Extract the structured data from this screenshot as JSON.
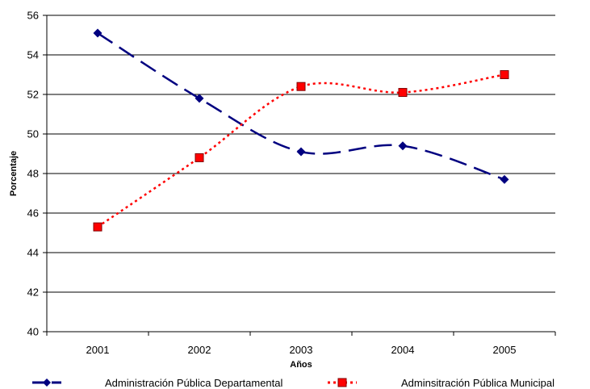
{
  "chart_data": {
    "type": "line",
    "categories": [
      "2001",
      "2002",
      "2003",
      "2004",
      "2005"
    ],
    "series": [
      {
        "name": "Administración Pública Departamental",
        "values": [
          55.1,
          51.8,
          49.1,
          49.4,
          47.7
        ],
        "color": "#000080",
        "marker": "diamond",
        "line_style": "long-dash"
      },
      {
        "name": "Adminsitración Pública Municipal",
        "values": [
          45.3,
          48.8,
          52.4,
          52.1,
          53.0
        ],
        "color": "#ff0000",
        "marker": "square",
        "line_style": "dotted"
      }
    ],
    "title": "",
    "xlabel": "Años",
    "ylabel": "Porcentaje",
    "ylim": [
      40,
      56
    ],
    "yticks": [
      "40",
      "42",
      "44",
      "46",
      "48",
      "50",
      "52",
      "54",
      "56"
    ],
    "grid": "horizontal",
    "legend_position": "bottom"
  }
}
